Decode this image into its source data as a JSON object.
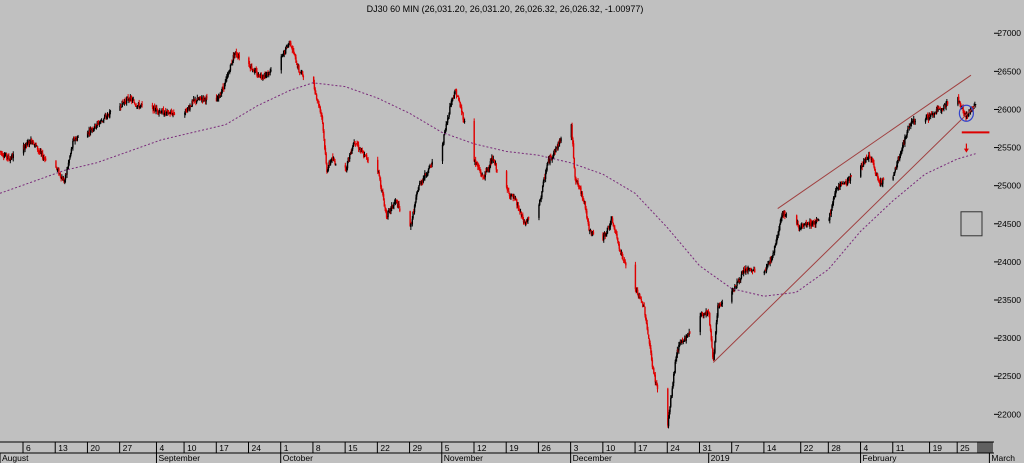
{
  "chart_data": {
    "type": "candlestick",
    "title": "DJ30 60 MIN (26,031.20, 26,031.20, 26,026.32, 26,026.32, -1.00977)",
    "x_axis": {
      "start": "2018-08-01",
      "end": "2019-03-05",
      "day_ticks": [
        {
          "date": "2018-08-06",
          "label": "6"
        },
        {
          "date": "2018-08-13",
          "label": "13"
        },
        {
          "date": "2018-08-20",
          "label": "20"
        },
        {
          "date": "2018-08-27",
          "label": "27"
        },
        {
          "date": "2018-09-04",
          "label": "4"
        },
        {
          "date": "2018-09-10",
          "label": "10"
        },
        {
          "date": "2018-09-17",
          "label": "17"
        },
        {
          "date": "2018-09-24",
          "label": "24"
        },
        {
          "date": "2018-10-01",
          "label": "1"
        },
        {
          "date": "2018-10-08",
          "label": "8"
        },
        {
          "date": "2018-10-15",
          "label": "15"
        },
        {
          "date": "2018-10-22",
          "label": "22"
        },
        {
          "date": "2018-10-29",
          "label": "29"
        },
        {
          "date": "2018-11-05",
          "label": "5"
        },
        {
          "date": "2018-11-12",
          "label": "12"
        },
        {
          "date": "2018-11-19",
          "label": "19"
        },
        {
          "date": "2018-11-26",
          "label": "26"
        },
        {
          "date": "2018-12-03",
          "label": "3"
        },
        {
          "date": "2018-12-10",
          "label": "10"
        },
        {
          "date": "2018-12-17",
          "label": "17"
        },
        {
          "date": "2018-12-24",
          "label": "24"
        },
        {
          "date": "2018-12-31",
          "label": "31"
        },
        {
          "date": "2019-01-07",
          "label": "7"
        },
        {
          "date": "2019-01-14",
          "label": "14"
        },
        {
          "date": "2019-01-22",
          "label": "22"
        },
        {
          "date": "2019-01-28",
          "label": "28"
        },
        {
          "date": "2019-02-04",
          "label": "4"
        },
        {
          "date": "2019-02-11",
          "label": "11"
        },
        {
          "date": "2019-02-19",
          "label": "19"
        },
        {
          "date": "2019-02-25",
          "label": "25"
        }
      ],
      "month_labels": [
        {
          "date": "2018-08-01",
          "label": "August"
        },
        {
          "date": "2018-09-04",
          "label": "September"
        },
        {
          "date": "2018-10-01",
          "label": "October"
        },
        {
          "date": "2018-11-05",
          "label": "November"
        },
        {
          "date": "2018-12-03",
          "label": "December"
        },
        {
          "date": "2019-01-02",
          "label": "2019"
        },
        {
          "date": "2019-02-04",
          "label": "February"
        },
        {
          "date": "2019-03-04",
          "label": "March"
        }
      ]
    },
    "y_axis": {
      "range": [
        21650,
        27200
      ],
      "ticks": [
        22000,
        22500,
        23000,
        23500,
        24000,
        24500,
        25000,
        25500,
        26000,
        26500,
        27000
      ],
      "side": "right"
    },
    "price_path": [
      [
        "2018-08-01",
        25450
      ],
      [
        "2018-08-03",
        25350
      ],
      [
        "2018-08-06",
        25500
      ],
      [
        "2018-08-08",
        25600
      ],
      [
        "2018-08-10",
        25400
      ],
      [
        "2018-08-13",
        25250
      ],
      [
        "2018-08-15",
        25050
      ],
      [
        "2018-08-17",
        25600
      ],
      [
        "2018-08-20",
        25700
      ],
      [
        "2018-08-22",
        25800
      ],
      [
        "2018-08-24",
        25900
      ],
      [
        "2018-08-27",
        26050
      ],
      [
        "2018-08-29",
        26150
      ],
      [
        "2018-08-31",
        26050
      ],
      [
        "2018-09-04",
        26000
      ],
      [
        "2018-09-06",
        25950
      ],
      [
        "2018-09-10",
        25950
      ],
      [
        "2018-09-12",
        26100
      ],
      [
        "2018-09-14",
        26150
      ],
      [
        "2018-09-17",
        26100
      ],
      [
        "2018-09-19",
        26350
      ],
      [
        "2018-09-21",
        26750
      ],
      [
        "2018-09-24",
        26600
      ],
      [
        "2018-09-26",
        26450
      ],
      [
        "2018-09-28",
        26450
      ],
      [
        "2018-10-01",
        26650
      ],
      [
        "2018-10-03",
        26900
      ],
      [
        "2018-10-05",
        26500
      ],
      [
        "2018-10-08",
        26350
      ],
      [
        "2018-10-10",
        25900
      ],
      [
        "2018-10-11",
        25200
      ],
      [
        "2018-10-12",
        25350
      ],
      [
        "2018-10-15",
        25200
      ],
      [
        "2018-10-17",
        25600
      ],
      [
        "2018-10-19",
        25400
      ],
      [
        "2018-10-22",
        25250
      ],
      [
        "2018-10-24",
        24600
      ],
      [
        "2018-10-26",
        24800
      ],
      [
        "2018-10-29",
        24400
      ],
      [
        "2018-10-31",
        25000
      ],
      [
        "2018-11-02",
        25200
      ],
      [
        "2018-11-05",
        25500
      ],
      [
        "2018-11-07",
        26100
      ],
      [
        "2018-11-08",
        26250
      ],
      [
        "2018-11-09",
        26050
      ],
      [
        "2018-11-12",
        25350
      ],
      [
        "2018-11-14",
        25100
      ],
      [
        "2018-11-16",
        25350
      ],
      [
        "2018-11-19",
        24950
      ],
      [
        "2018-11-21",
        24800
      ],
      [
        "2018-11-23",
        24500
      ],
      [
        "2018-11-26",
        24700
      ],
      [
        "2018-11-28",
        25300
      ],
      [
        "2018-11-30",
        25500
      ],
      [
        "2018-12-03",
        25900
      ],
      [
        "2018-12-04",
        25100
      ],
      [
        "2018-12-06",
        24800
      ],
      [
        "2018-12-07",
        24400
      ],
      [
        "2018-12-10",
        24300
      ],
      [
        "2018-12-12",
        24550
      ],
      [
        "2018-12-14",
        24100
      ],
      [
        "2018-12-17",
        23650
      ],
      [
        "2018-12-19",
        23400
      ],
      [
        "2018-12-21",
        22550
      ],
      [
        "2018-12-24",
        21800
      ],
      [
        "2018-12-26",
        22800
      ],
      [
        "2018-12-27",
        22950
      ],
      [
        "2018-12-28",
        23000
      ],
      [
        "2018-12-31",
        23300
      ],
      [
        "2019-01-02",
        23350
      ],
      [
        "2019-01-03",
        22700
      ],
      [
        "2019-01-04",
        23400
      ],
      [
        "2019-01-08",
        23700
      ],
      [
        "2019-01-10",
        23900
      ],
      [
        "2019-01-14",
        23850
      ],
      [
        "2019-01-16",
        24100
      ],
      [
        "2019-01-18",
        24650
      ],
      [
        "2019-01-22",
        24450
      ],
      [
        "2019-01-24",
        24500
      ],
      [
        "2019-01-28",
        24550
      ],
      [
        "2019-01-30",
        25000
      ],
      [
        "2019-02-01",
        25050
      ],
      [
        "2019-02-04",
        25250
      ],
      [
        "2019-02-06",
        25400
      ],
      [
        "2019-02-08",
        25050
      ],
      [
        "2019-02-11",
        25100
      ],
      [
        "2019-02-13",
        25500
      ],
      [
        "2019-02-15",
        25850
      ],
      [
        "2019-02-19",
        25900
      ],
      [
        "2019-02-21",
        26000
      ],
      [
        "2019-02-22",
        26050
      ],
      [
        "2019-02-25",
        26150
      ],
      [
        "2019-02-27",
        25900
      ],
      [
        "2019-03-01",
        26100
      ]
    ],
    "moving_average": [
      [
        "2018-08-01",
        24900
      ],
      [
        "2018-08-08",
        25050
      ],
      [
        "2018-08-15",
        25200
      ],
      [
        "2018-08-22",
        25300
      ],
      [
        "2018-08-29",
        25450
      ],
      [
        "2018-09-05",
        25600
      ],
      [
        "2018-09-12",
        25700
      ],
      [
        "2018-09-19",
        25800
      ],
      [
        "2018-09-26",
        26050
      ],
      [
        "2018-10-03",
        26250
      ],
      [
        "2018-10-08",
        26350
      ],
      [
        "2018-10-15",
        26300
      ],
      [
        "2018-10-22",
        26150
      ],
      [
        "2018-10-29",
        25950
      ],
      [
        "2018-11-05",
        25700
      ],
      [
        "2018-11-12",
        25550
      ],
      [
        "2018-11-19",
        25450
      ],
      [
        "2018-11-26",
        25400
      ],
      [
        "2018-12-03",
        25300
      ],
      [
        "2018-12-10",
        25150
      ],
      [
        "2018-12-17",
        24900
      ],
      [
        "2018-12-24",
        24450
      ],
      [
        "2018-12-31",
        23950
      ],
      [
        "2019-01-07",
        23650
      ],
      [
        "2019-01-14",
        23550
      ],
      [
        "2019-01-21",
        23600
      ],
      [
        "2019-01-28",
        23900
      ],
      [
        "2019-02-04",
        24400
      ],
      [
        "2019-02-11",
        24800
      ],
      [
        "2019-02-18",
        25150
      ],
      [
        "2019-02-25",
        25350
      ],
      [
        "2019-03-01",
        25420
      ]
    ],
    "annotations": {
      "channel_lower": [
        [
          "2019-01-03",
          22680
        ],
        [
          "2019-03-01",
          26050
        ]
      ],
      "channel_upper": [
        [
          "2019-01-17",
          24700
        ],
        [
          "2019-02-28",
          26450
        ]
      ],
      "support_level": {
        "from": "2019-02-26",
        "to": "2019-03-04",
        "value": 25700
      },
      "circle": {
        "date": "2019-02-27",
        "value": 25950
      },
      "down_arrow": {
        "date": "2019-02-27",
        "value": 25500
      },
      "small_box": {
        "date": "2019-02-28",
        "value": 24500
      }
    },
    "grid": false,
    "colors": {
      "background": "#c0c0c0",
      "up_candle": "#000000",
      "down_candle": "#e00000",
      "moving_average": "#7a2a7a",
      "trend_lines": "#a04040",
      "support_line": "#dd0000",
      "circle": "#3344cc"
    }
  }
}
